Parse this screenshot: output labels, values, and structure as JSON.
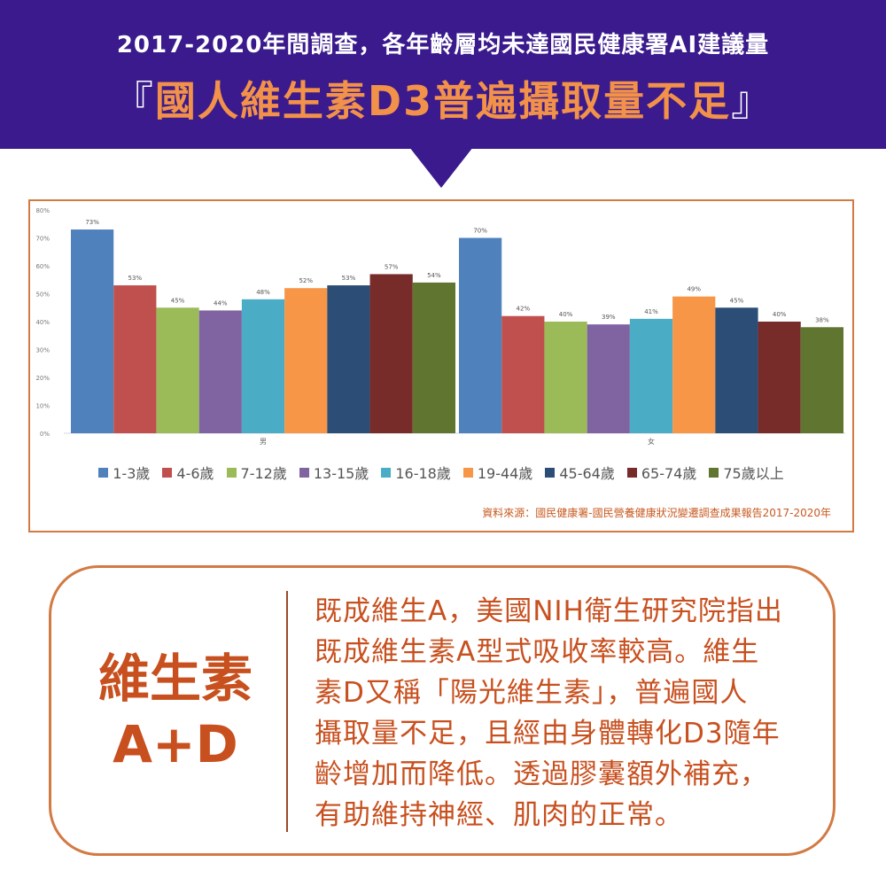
{
  "header": {
    "subtitle": "2017-2020年間調查，各年齡層均未達國民健康署AI建議量",
    "headline_open": "『",
    "headline": "國人維生素D3普遍攝取量不足",
    "headline_close": "』"
  },
  "chart_data": {
    "type": "bar",
    "categories": [
      "男",
      "女"
    ],
    "ylim": [
      0,
      80
    ],
    "y_ticks": [
      "0%",
      "10%",
      "20%",
      "30%",
      "40%",
      "50%",
      "60%",
      "70%",
      "80%"
    ],
    "grid": false,
    "legend_position": "bottom",
    "series": [
      {
        "name": "1-3歲",
        "color": "#4f81bd",
        "values": [
          73,
          70
        ],
        "labels": [
          "73%",
          "70%"
        ]
      },
      {
        "name": "4-6歲",
        "color": "#c0504d",
        "values": [
          53,
          42
        ],
        "labels": [
          "53%",
          "42%"
        ]
      },
      {
        "name": "7-12歲",
        "color": "#9bbb59",
        "values": [
          45,
          40
        ],
        "labels": [
          "45%",
          "40%"
        ]
      },
      {
        "name": "13-15歲",
        "color": "#8064a2",
        "values": [
          44,
          39
        ],
        "labels": [
          "44%",
          "39%"
        ]
      },
      {
        "name": "16-18歲",
        "color": "#4bacc6",
        "values": [
          48,
          41
        ],
        "labels": [
          "48%",
          "41%"
        ]
      },
      {
        "name": "19-44歲",
        "color": "#f79646",
        "values": [
          52,
          49
        ],
        "labels": [
          "52%",
          "49%"
        ]
      },
      {
        "name": "45-64歲",
        "color": "#2c4d75",
        "values": [
          53,
          45
        ],
        "labels": [
          "53%",
          "45%"
        ]
      },
      {
        "name": "65-74歲",
        "color": "#772c2a",
        "values": [
          57,
          40
        ],
        "labels": [
          "57%",
          "40%"
        ]
      },
      {
        "name": "75歲以上",
        "color": "#5f7530",
        "values": [
          54,
          38
        ],
        "labels": [
          "54%",
          "38%"
        ]
      }
    ]
  },
  "source_text": "資料來源：國民健康署-國民營養健康狀況變遷調查成果報告2017-2020年",
  "info": {
    "title_line1": "維生素",
    "title_line2": "A+D",
    "body_lines": [
      "既成維生A，美國NIH衛生研究院指出",
      "既成維生素A型式吸收率較高。維生",
      "素D又稱「陽光維生素」，普遍國人",
      "攝取量不足，且經由身體轉化D3隨年",
      "齡增加而降低。透過膠囊額外補充，",
      "有助維持神經、肌肉的正常。"
    ]
  },
  "colors": {
    "header_bg": "#3a1a8c",
    "headline": "#f2914a",
    "accent": "#c8501f",
    "border": "#d37a43"
  }
}
